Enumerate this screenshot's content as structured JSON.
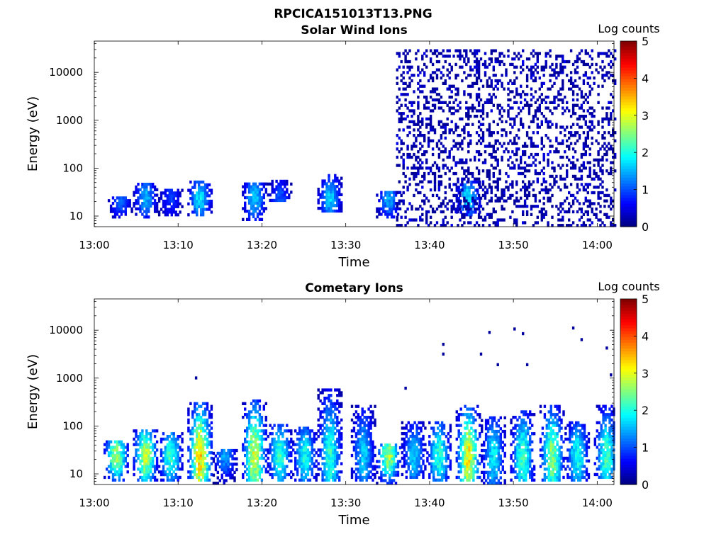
{
  "page": {
    "title": "RPCICA151013T13.PNG"
  },
  "chart_data": [
    {
      "type": "heatmap",
      "title": "Solar Wind Ions",
      "xlabel": "Time",
      "ylabel": "Energy (eV)",
      "x_ticks": [
        "13:00",
        "13:10",
        "13:20",
        "13:30",
        "13:40",
        "13:50",
        "14:00"
      ],
      "x_range": [
        "13:00",
        "14:02"
      ],
      "y_scale": "log",
      "y_ticks": [
        10,
        100,
        1000,
        10000
      ],
      "ylim": [
        6,
        45000
      ],
      "colorbar": {
        "label": "Log counts",
        "ticks": [
          0,
          1,
          2,
          3,
          4,
          5
        ],
        "range": [
          0,
          5
        ],
        "colormap": "jet"
      },
      "clusters": [
        {
          "t": "13:03",
          "e": [
            9,
            25
          ],
          "max": 1.3
        },
        {
          "t": "13:06",
          "e": [
            9,
            45
          ],
          "max": 1.7
        },
        {
          "t": "13:09",
          "e": [
            10,
            35
          ],
          "max": 1.0
        },
        {
          "t": "13:12.5",
          "e": [
            10,
            55
          ],
          "max": 2.0
        },
        {
          "t": "13:19",
          "e": [
            8,
            50
          ],
          "max": 1.8
        },
        {
          "t": "13:22",
          "e": [
            20,
            55
          ],
          "max": 1.2
        },
        {
          "t": "13:28",
          "e": [
            12,
            70
          ],
          "max": 1.8
        },
        {
          "t": "13:35",
          "e": [
            9,
            30
          ],
          "max": 1.6
        },
        {
          "t": "13:44.5",
          "e": [
            10,
            50
          ],
          "max": 2.0
        }
      ],
      "scatter_region": {
        "t": [
          "13:36",
          "14:02"
        ],
        "e": [
          6,
          30000
        ],
        "max": 1.0
      }
    },
    {
      "type": "heatmap",
      "title": "Cometary Ions",
      "xlabel": "Time",
      "ylabel": "Energy (eV)",
      "x_ticks": [
        "13:00",
        "13:10",
        "13:20",
        "13:30",
        "13:40",
        "13:50",
        "14:00"
      ],
      "x_range": [
        "13:00",
        "14:02"
      ],
      "y_scale": "log",
      "y_ticks": [
        10,
        100,
        1000,
        10000
      ],
      "ylim": [
        6,
        45000
      ],
      "colorbar": {
        "label": "Log counts",
        "ticks": [
          0,
          1,
          2,
          3,
          4,
          5
        ],
        "range": [
          0,
          5
        ],
        "colormap": "jet"
      },
      "clusters": [
        {
          "t": "13:02.5",
          "e": [
            7,
            50
          ],
          "max": 3.0
        },
        {
          "t": "13:06",
          "e": [
            7,
            80
          ],
          "max": 3.1
        },
        {
          "t": "13:09",
          "e": [
            7,
            70
          ],
          "max": 2.4
        },
        {
          "t": "13:12.5",
          "e": [
            7,
            300
          ],
          "max": 3.6
        },
        {
          "t": "13:15.5",
          "e": [
            6,
            30
          ],
          "max": 1.6
        },
        {
          "t": "13:19",
          "e": [
            7,
            350
          ],
          "max": 3.2
        },
        {
          "t": "13:22",
          "e": [
            7,
            100
          ],
          "max": 2.4
        },
        {
          "t": "13:25",
          "e": [
            7,
            90
          ],
          "max": 2.2
        },
        {
          "t": "13:28",
          "e": [
            7,
            600
          ],
          "max": 2.3
        },
        {
          "t": "13:32",
          "e": [
            7,
            250
          ],
          "max": 1.8
        },
        {
          "t": "13:35",
          "e": [
            6,
            40
          ],
          "max": 3.0
        },
        {
          "t": "13:38",
          "e": [
            8,
            120
          ],
          "max": 1.8
        },
        {
          "t": "13:41",
          "e": [
            7,
            120
          ],
          "max": 2.3
        },
        {
          "t": "13:44.5",
          "e": [
            7,
            250
          ],
          "max": 3.4
        },
        {
          "t": "13:47.5",
          "e": [
            6,
            150
          ],
          "max": 2.0
        },
        {
          "t": "13:51",
          "e": [
            7,
            200
          ],
          "max": 2.4
        },
        {
          "t": "13:54.5",
          "e": [
            7,
            250
          ],
          "max": 2.8
        },
        {
          "t": "13:57.5",
          "e": [
            7,
            120
          ],
          "max": 2.2
        },
        {
          "t": "14:01",
          "e": [
            8,
            250
          ],
          "max": 2.4
        }
      ],
      "sparse_points": [
        {
          "t": "13:12",
          "e": 950
        },
        {
          "t": "13:41.5",
          "e": 4800
        },
        {
          "t": "13:41.5",
          "e": 3000
        },
        {
          "t": "13:47",
          "e": 8500
        },
        {
          "t": "13:50",
          "e": 10000
        },
        {
          "t": "13:51",
          "e": 8000
        },
        {
          "t": "13:51.5",
          "e": 1800
        },
        {
          "t": "13:48",
          "e": 1800
        },
        {
          "t": "13:46",
          "e": 3000
        },
        {
          "t": "13:57",
          "e": 10500
        },
        {
          "t": "13:58",
          "e": 6000
        },
        {
          "t": "14:01",
          "e": 4000
        },
        {
          "t": "14:01.5",
          "e": 1100
        },
        {
          "t": "13:37",
          "e": 580
        }
      ]
    }
  ]
}
